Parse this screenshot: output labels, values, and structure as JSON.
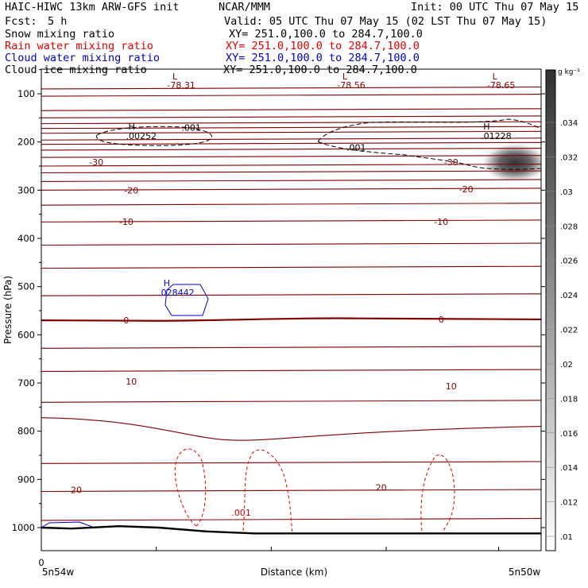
{
  "header": {
    "model": "HAIC-HIWC 13km ARW-GFS init",
    "org": "NCAR/MMM",
    "init": "Init: 00 UTC Thu 07 May 15",
    "fcst_label": "Fcst:",
    "fcst_value": "5 h",
    "valid": "Valid: 05 UTC Thu 07 May 15 (02 LST Thu 07 May 15)"
  },
  "fields": [
    {
      "label": "Snow mixing ratio",
      "xy": "XY= 251.0,100.0 to 284.7,100.0",
      "color": "#000000"
    },
    {
      "label": "Rain water mixing ratio",
      "xy": "XY= 251.0,100.0 to 284.7,100.0",
      "color": "#e00000"
    },
    {
      "label": "Cloud water mixing ratio",
      "xy": "XY= 251.0,100.0 to 284.7,100.0",
      "color": "#0000cc"
    },
    {
      "label": "Cloud ice mixing ratio",
      "xy": "XY= 251.0,100.0 to 284.7,100.0",
      "color": "#000000"
    }
  ],
  "colors": {
    "temperature": "#800000",
    "rain": "#e00000",
    "cloud_water": "#0000cc",
    "snow": "#000000",
    "terrain": "#000000"
  },
  "chart_data": {
    "type": "contour-cross-section",
    "ylabel": "Pressure (hPa)",
    "xlabel": "Distance (km)",
    "y_ticks": [
      "100",
      "200",
      "300",
      "400",
      "500",
      "600",
      "700",
      "800",
      "900",
      "1000"
    ],
    "x_ticks": [
      "0"
    ],
    "x_start_label": "5n54w",
    "x_end_label": "5n50w",
    "colorbar": {
      "unit": "g kg⁻¹",
      "ticks": [
        ".01",
        ".012",
        ".014",
        ".016",
        ".018",
        ".02",
        ".022",
        ".024",
        ".026",
        ".028",
        ".03",
        ".032",
        ".034"
      ]
    },
    "temperature_labels": [
      {
        "text": "-30",
        "x": 0.11,
        "p": 242
      },
      {
        "text": "-30",
        "x": 0.82,
        "p": 242
      },
      {
        "text": "-20",
        "x": 0.18,
        "p": 300
      },
      {
        "text": "-20",
        "x": 0.85,
        "p": 298
      },
      {
        "text": "-10",
        "x": 0.17,
        "p": 365
      },
      {
        "text": "-10",
        "x": 0.8,
        "p": 365
      },
      {
        "text": "0",
        "x": 0.17,
        "p": 570
      },
      {
        "text": "0",
        "x": 0.8,
        "p": 568
      },
      {
        "text": "10",
        "x": 0.18,
        "p": 697
      },
      {
        "text": "10",
        "x": 0.82,
        "p": 707
      },
      {
        "text": "20",
        "x": 0.07,
        "p": 922
      },
      {
        "text": "20",
        "x": 0.68,
        "p": 917
      }
    ],
    "lows": [
      {
        "label": "L",
        "value": "-78.31",
        "x": 0.28
      },
      {
        "label": "L",
        "value": "-78.56",
        "x": 0.62
      },
      {
        "label": "L",
        "value": "-78.65",
        "x": 0.92
      }
    ],
    "highs": [
      {
        "label": "H",
        "value": ".00252",
        "x": 0.2,
        "p": 192
      },
      {
        "label": "H",
        "value": ".01228",
        "x": 0.91,
        "p": 192
      },
      {
        "label": "H",
        "value": ".028442",
        "x": 0.27,
        "p": 517
      }
    ],
    "contour_labels": [
      {
        "text": ".001",
        "x": 0.3,
        "p": 170,
        "field": "snow"
      },
      {
        "text": ".001",
        "x": 0.63,
        "p": 211,
        "field": "snow"
      },
      {
        "text": ".001",
        "x": 0.4,
        "p": 969,
        "field": "rain"
      }
    ]
  }
}
